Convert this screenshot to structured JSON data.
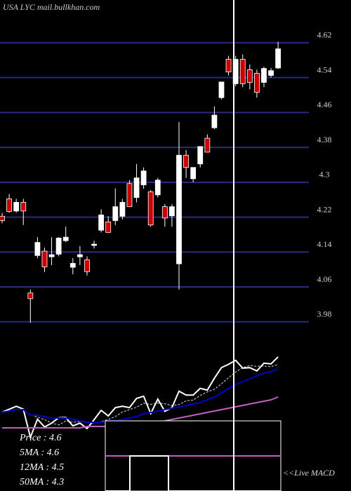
{
  "header": "USA LYC mail.bullkhan.com",
  "chart_data": [
    {
      "type": "candlestick",
      "ylim": [
        3.978,
        4.718
      ],
      "yticks": [
        3.98,
        4.06,
        4.14,
        4.22,
        4.3,
        4.38,
        4.46,
        4.54,
        4.62
      ],
      "up_color": "#ffffff",
      "down_color": "#cc0000",
      "grid": true,
      "open": [
        4.222,
        4.262,
        4.234,
        4.254,
        4.046,
        4.132,
        4.142,
        4.129,
        4.135,
        4.166,
        4.105,
        4.129,
        4.122,
        4.155,
        4.19,
        4.209,
        4.212,
        4.222,
        4.297,
        4.265,
        4.294,
        4.278,
        4.271,
        4.244,
        4.223,
        4.113,
        4.362,
        4.308,
        4.342,
        4.401,
        4.425,
        4.494,
        4.582,
        4.526,
        4.582,
        4.558,
        4.55,
        4.529,
        4.545,
        4.562
      ],
      "high": [
        4.23,
        4.273,
        4.262,
        4.262,
        4.054,
        4.174,
        4.15,
        4.174,
        4.174,
        4.198,
        4.126,
        4.154,
        4.13,
        4.166,
        4.238,
        4.222,
        4.286,
        4.262,
        4.305,
        4.342,
        4.334,
        4.282,
        4.31,
        4.25,
        4.25,
        4.438,
        4.374,
        4.334,
        4.382,
        4.41,
        4.474,
        4.53,
        4.59,
        4.59,
        4.593,
        4.57,
        4.558,
        4.565,
        4.562,
        4.622
      ],
      "low": [
        4.206,
        4.23,
        4.23,
        4.202,
        3.978,
        4.126,
        4.094,
        4.11,
        4.13,
        4.163,
        4.089,
        4.11,
        4.086,
        4.148,
        4.185,
        4.185,
        4.202,
        4.215,
        4.244,
        4.254,
        4.285,
        4.198,
        4.265,
        4.198,
        4.198,
        4.054,
        4.31,
        4.3,
        4.334,
        4.369,
        4.422,
        4.49,
        4.545,
        4.52,
        4.518,
        4.513,
        4.494,
        4.518,
        4.54,
        4.56
      ],
      "close": [
        4.212,
        4.233,
        4.254,
        4.234,
        4.033,
        4.162,
        4.106,
        4.134,
        4.172,
        4.174,
        4.114,
        4.134,
        4.095,
        4.158,
        4.225,
        4.185,
        4.244,
        4.254,
        4.244,
        4.31,
        4.326,
        4.202,
        4.305,
        4.218,
        4.244,
        4.362,
        4.334,
        4.334,
        4.382,
        4.369,
        4.454,
        4.53,
        4.553,
        4.582,
        4.526,
        4.529,
        4.506,
        4.561,
        4.556,
        4.606
      ]
    },
    {
      "type": "line",
      "ylim": [
        3.95,
        4.75
      ],
      "series": [
        {
          "name": "Price : 4.6",
          "color": "#ffffff",
          "values": [
            4.212,
            4.233,
            4.254,
            4.234,
            4.033,
            4.162,
            4.106,
            4.134,
            4.172,
            4.174,
            4.114,
            4.134,
            4.095,
            4.158,
            4.225,
            4.185,
            4.244,
            4.254,
            4.244,
            4.31,
            4.326,
            4.202,
            4.305,
            4.218,
            4.244,
            4.362,
            4.334,
            4.334,
            4.382,
            4.369,
            4.454,
            4.53,
            4.553,
            4.582,
            4.526,
            4.529,
            4.506,
            4.561,
            4.556,
            4.606
          ]
        },
        {
          "name": "5MA : 4.6",
          "color": "#dddddd",
          "dashed": true,
          "values": [
            4.212,
            4.223,
            4.233,
            4.233,
            4.193,
            4.177,
            4.158,
            4.134,
            4.121,
            4.15,
            4.14,
            4.146,
            4.138,
            4.135,
            4.145,
            4.159,
            4.181,
            4.213,
            4.23,
            4.247,
            4.276,
            4.267,
            4.277,
            4.272,
            4.259,
            4.266,
            4.293,
            4.298,
            4.331,
            4.356,
            4.375,
            4.414,
            4.458,
            4.498,
            4.529,
            4.544,
            4.539,
            4.541,
            4.536,
            4.552
          ]
        },
        {
          "name": "12MA : 4.5",
          "color": "#0000cc",
          "values": [
            4.212,
            4.22,
            4.23,
            4.23,
            4.19,
            4.19,
            4.18,
            4.17,
            4.17,
            4.17,
            4.16,
            4.15,
            4.14,
            4.14,
            4.14,
            4.15,
            4.15,
            4.16,
            4.17,
            4.18,
            4.2,
            4.21,
            4.22,
            4.23,
            4.24,
            4.25,
            4.26,
            4.27,
            4.28,
            4.3,
            4.32,
            4.35,
            4.38,
            4.41,
            4.43,
            4.45,
            4.47,
            4.49,
            4.5,
            4.52
          ]
        },
        {
          "name": "50MA : 4.3",
          "color": "#c060c0",
          "values": [
            4.1,
            4.1,
            4.1,
            4.1,
            4.1,
            4.1,
            4.1,
            4.1,
            4.1,
            4.1,
            4.1,
            4.1,
            4.11,
            4.11,
            4.11,
            4.11,
            4.11,
            4.11,
            4.11,
            4.11,
            4.12,
            4.13,
            4.14,
            4.15,
            4.16,
            4.17,
            4.18,
            4.19,
            4.2,
            4.21,
            4.22,
            4.23,
            4.24,
            4.25,
            4.26,
            4.27,
            4.28,
            4.29,
            4.3,
            4.32
          ]
        }
      ],
      "annotation": "<<Live MACD"
    }
  ]
}
